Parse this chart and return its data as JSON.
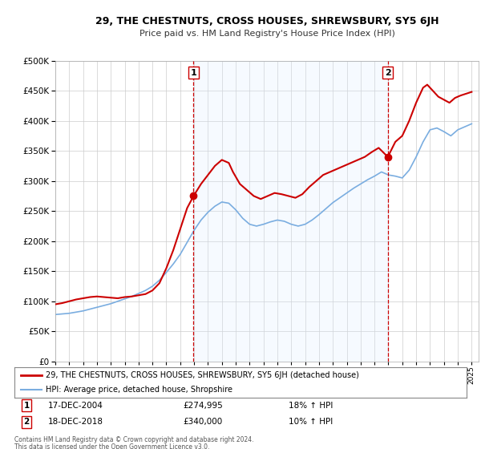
{
  "title": "29, THE CHESTNUTS, CROSS HOUSES, SHREWSBURY, SY5 6JH",
  "subtitle": "Price paid vs. HM Land Registry's House Price Index (HPI)",
  "legend_line1": "29, THE CHESTNUTS, CROSS HOUSES, SHREWSBURY, SY5 6JH (detached house)",
  "legend_line2": "HPI: Average price, detached house, Shropshire",
  "marker1_date": "17-DEC-2004",
  "marker1_price": 274995,
  "marker1_hpi": "18% ↑ HPI",
  "marker2_date": "18-DEC-2018",
  "marker2_price": 340000,
  "marker2_hpi": "10% ↑ HPI",
  "footer1": "Contains HM Land Registry data © Crown copyright and database right 2024.",
  "footer2": "This data is licensed under the Open Government Licence v3.0.",
  "red_color": "#cc0000",
  "blue_color": "#7aade0",
  "marker_color": "#cc0000",
  "vline_color": "#cc0000",
  "shade_color": "#ddeeff",
  "background_color": "#ffffff",
  "grid_color": "#cccccc",
  "ylim": [
    0,
    500000
  ],
  "yticks": [
    0,
    50000,
    100000,
    150000,
    200000,
    250000,
    300000,
    350000,
    400000,
    450000,
    500000
  ],
  "xlim_start": 1995.0,
  "xlim_end": 2025.5,
  "marker1_x": 2004.96,
  "marker2_x": 2018.96,
  "red_x": [
    1995.0,
    1995.5,
    1996.0,
    1996.5,
    1997.0,
    1997.5,
    1998.0,
    1998.5,
    1999.0,
    1999.5,
    2000.0,
    2000.5,
    2001.0,
    2001.5,
    2002.0,
    2002.5,
    2003.0,
    2003.5,
    2004.0,
    2004.5,
    2004.96,
    2005.5,
    2006.0,
    2006.5,
    2007.0,
    2007.5,
    2007.8,
    2008.3,
    2008.8,
    2009.3,
    2009.8,
    2010.3,
    2010.8,
    2011.3,
    2011.8,
    2012.3,
    2012.8,
    2013.3,
    2013.8,
    2014.3,
    2014.8,
    2015.3,
    2015.8,
    2016.3,
    2016.8,
    2017.3,
    2017.8,
    2018.3,
    2018.96,
    2019.5,
    2020.0,
    2020.5,
    2021.0,
    2021.5,
    2021.8,
    2022.2,
    2022.6,
    2023.0,
    2023.4,
    2023.8,
    2024.2,
    2024.6,
    2025.0
  ],
  "red_y": [
    95000,
    97000,
    100000,
    103000,
    105000,
    107000,
    108000,
    107000,
    106000,
    105000,
    107000,
    108000,
    110000,
    112000,
    118000,
    130000,
    155000,
    185000,
    220000,
    255000,
    274995,
    295000,
    310000,
    325000,
    335000,
    330000,
    315000,
    295000,
    285000,
    275000,
    270000,
    275000,
    280000,
    278000,
    275000,
    272000,
    278000,
    290000,
    300000,
    310000,
    315000,
    320000,
    325000,
    330000,
    335000,
    340000,
    348000,
    355000,
    340000,
    365000,
    375000,
    400000,
    430000,
    455000,
    460000,
    450000,
    440000,
    435000,
    430000,
    438000,
    442000,
    445000,
    448000
  ],
  "blue_x": [
    1995.0,
    1995.5,
    1996.0,
    1996.5,
    1997.0,
    1997.5,
    1998.0,
    1998.5,
    1999.0,
    1999.5,
    2000.0,
    2000.5,
    2001.0,
    2001.5,
    2002.0,
    2002.5,
    2003.0,
    2003.5,
    2004.0,
    2004.5,
    2005.0,
    2005.5,
    2006.0,
    2006.5,
    2007.0,
    2007.5,
    2008.0,
    2008.5,
    2009.0,
    2009.5,
    2010.0,
    2010.5,
    2011.0,
    2011.5,
    2012.0,
    2012.5,
    2013.0,
    2013.5,
    2014.0,
    2014.5,
    2015.0,
    2015.5,
    2016.0,
    2016.5,
    2017.0,
    2017.5,
    2018.0,
    2018.5,
    2019.0,
    2019.5,
    2020.0,
    2020.5,
    2021.0,
    2021.5,
    2022.0,
    2022.5,
    2023.0,
    2023.5,
    2024.0,
    2024.5,
    2025.0
  ],
  "blue_y": [
    78000,
    79000,
    80000,
    82000,
    84000,
    87000,
    90000,
    93000,
    96000,
    100000,
    104000,
    108000,
    113000,
    118000,
    125000,
    135000,
    148000,
    162000,
    178000,
    198000,
    218000,
    235000,
    248000,
    258000,
    265000,
    263000,
    252000,
    238000,
    228000,
    225000,
    228000,
    232000,
    235000,
    233000,
    228000,
    225000,
    228000,
    235000,
    244000,
    254000,
    264000,
    272000,
    280000,
    288000,
    295000,
    302000,
    308000,
    315000,
    310000,
    308000,
    305000,
    318000,
    340000,
    365000,
    385000,
    388000,
    382000,
    375000,
    385000,
    390000,
    395000
  ]
}
